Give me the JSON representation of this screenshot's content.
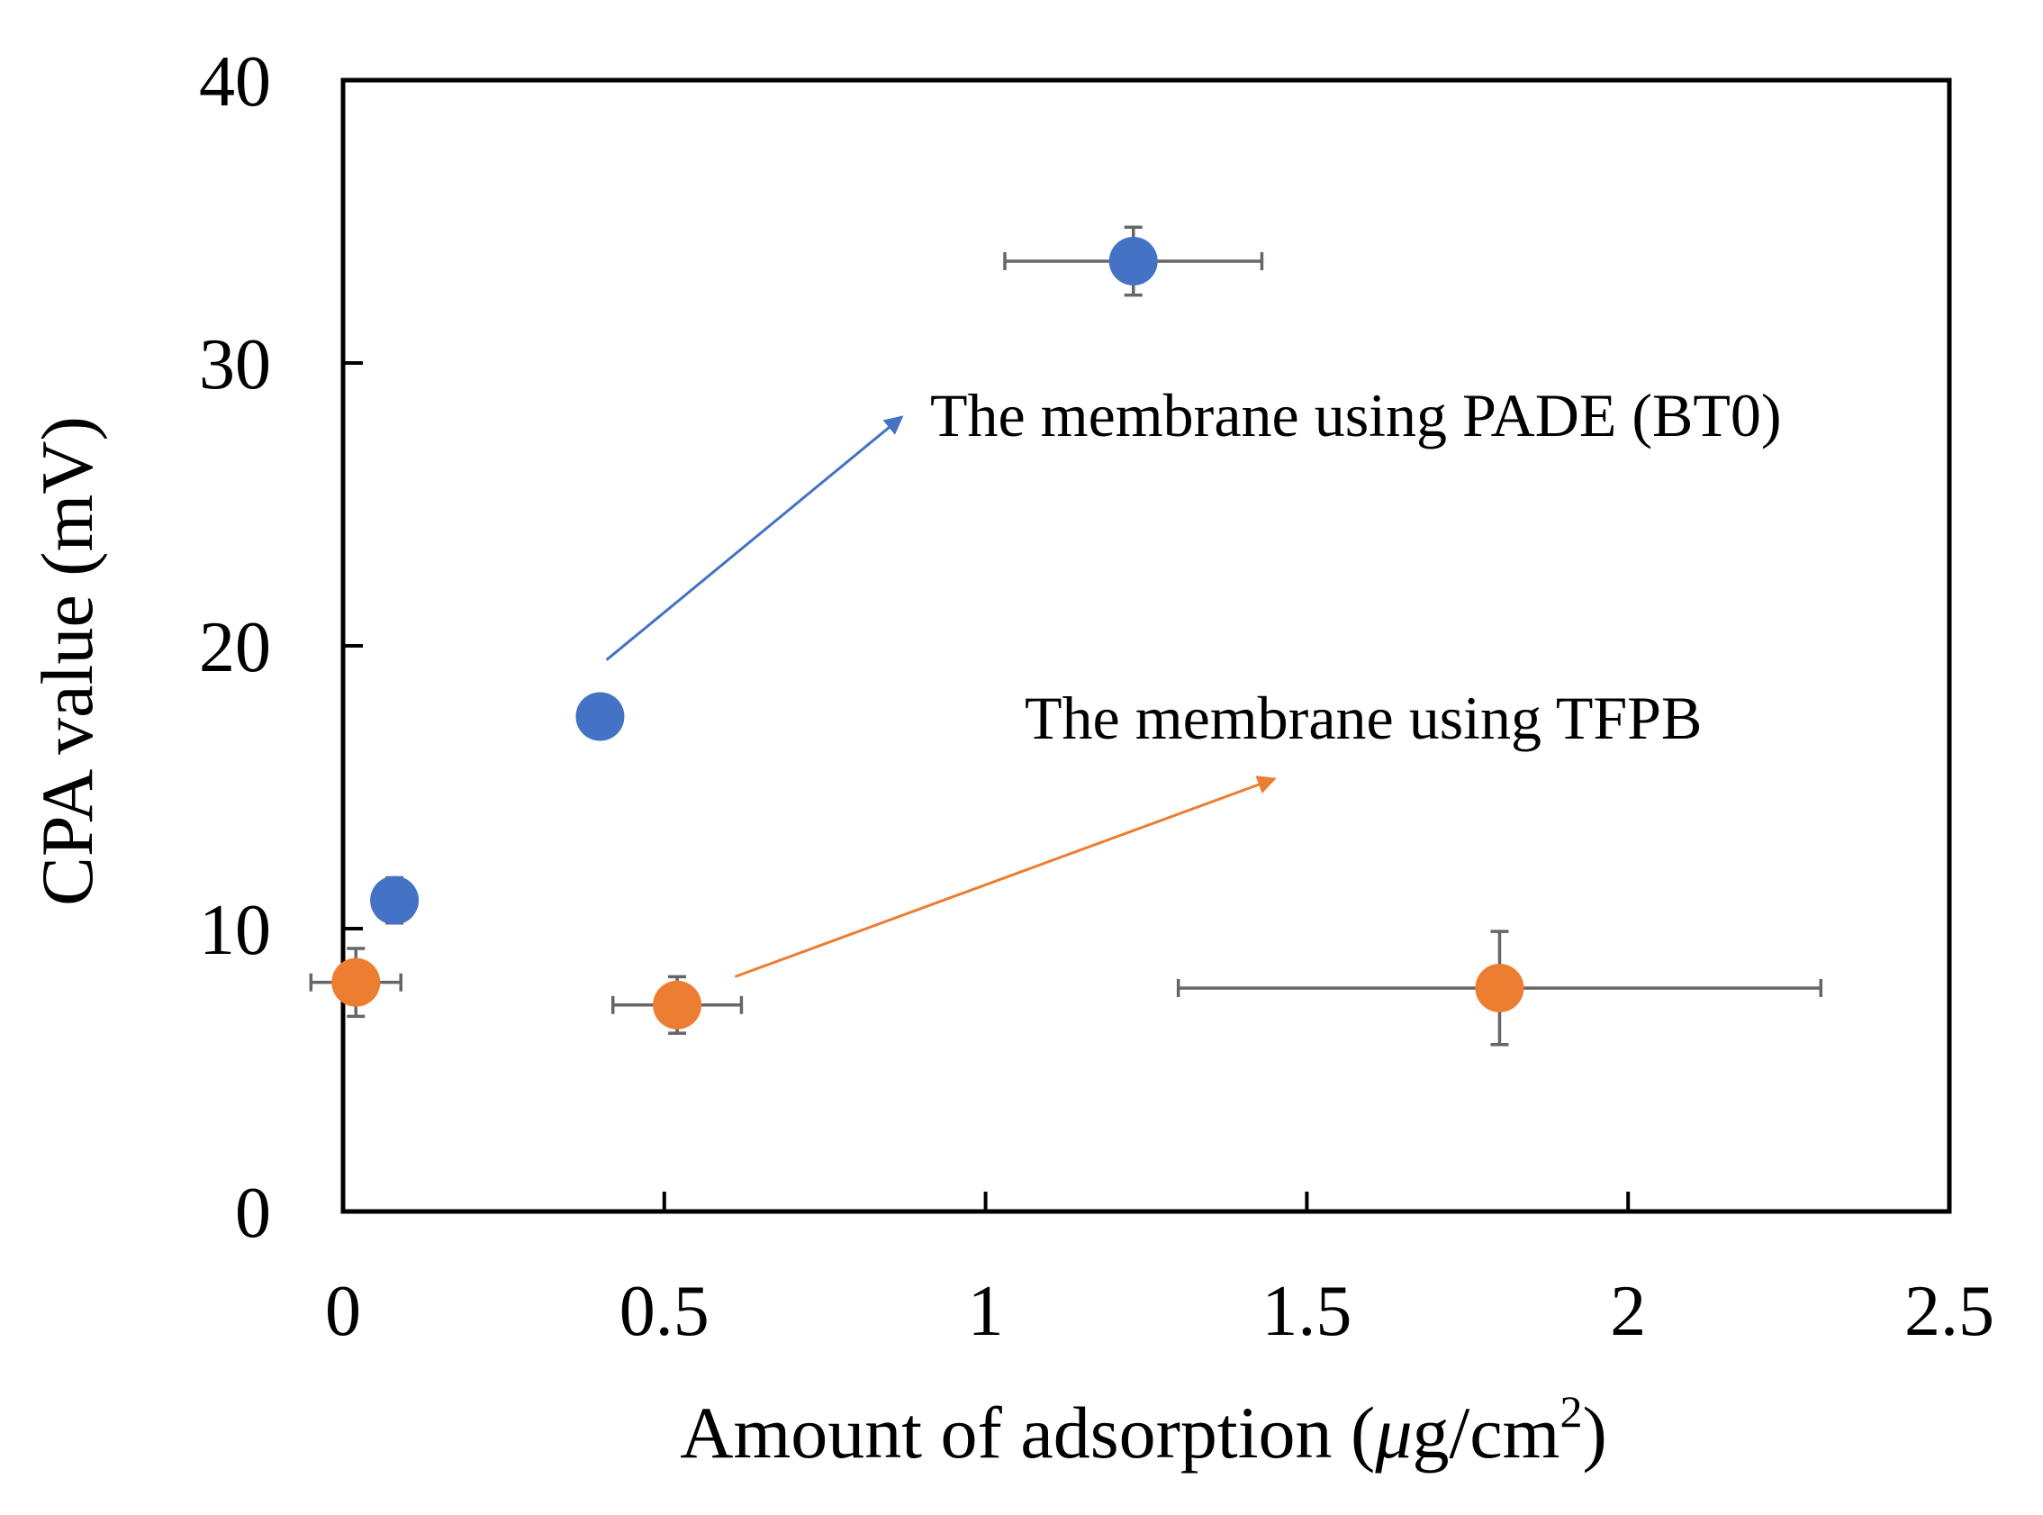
{
  "chart_data": {
    "type": "scatter",
    "title": "",
    "xlabel": "Amount of adsorption (",
    "xlabel_mu": "μ",
    "xlabel_unit": "g/cm",
    "xlabel_sup": "2",
    "xlabel_close": ")",
    "ylabel": "CPA value (mV)",
    "xlim": [
      0,
      2.5
    ],
    "ylim": [
      0,
      40
    ],
    "xticks": [
      0,
      0.5,
      1,
      1.5,
      2,
      2.5
    ],
    "xtick_labels": [
      "0",
      "0.5",
      "1",
      "1.5",
      "2",
      "2.5"
    ],
    "yticks": [
      0,
      10,
      20,
      30,
      40
    ],
    "ytick_labels": [
      "0",
      "10",
      "20",
      "30",
      "40"
    ],
    "grid": false,
    "series": [
      {
        "name": "The membrane using PADE (BT0)",
        "color": "#4472C4",
        "points": [
          {
            "x": 0.08,
            "y": 11.0,
            "xerr": 0.0,
            "yerr": 0.8
          },
          {
            "x": 0.4,
            "y": 17.5,
            "xerr": 0.0,
            "yerr": 0.0
          },
          {
            "x": 1.23,
            "y": 33.6,
            "xerr": 0.2,
            "yerr": 1.2
          }
        ]
      },
      {
        "name": "The membrane using TFPB",
        "color": "#ED7D31",
        "points": [
          {
            "x": 0.02,
            "y": 8.1,
            "xerr": 0.07,
            "yerr": 1.2
          },
          {
            "x": 0.52,
            "y": 7.3,
            "xerr": 0.1,
            "yerr": 1.0
          },
          {
            "x": 1.8,
            "y": 7.9,
            "xerr": 0.5,
            "yerr": 2.0
          }
        ]
      }
    ],
    "annotations": [
      {
        "text": "The membrane using PADE (BT0)",
        "series": 0,
        "arrow_from": [
          0.41,
          19.5
        ],
        "arrow_to": [
          0.87,
          28.1
        ]
      },
      {
        "text": "The membrane using TFPB",
        "series": 1,
        "arrow_from": [
          0.61,
          8.3
        ],
        "arrow_to": [
          1.45,
          15.3
        ]
      }
    ],
    "errorbar_color": "#666666"
  }
}
